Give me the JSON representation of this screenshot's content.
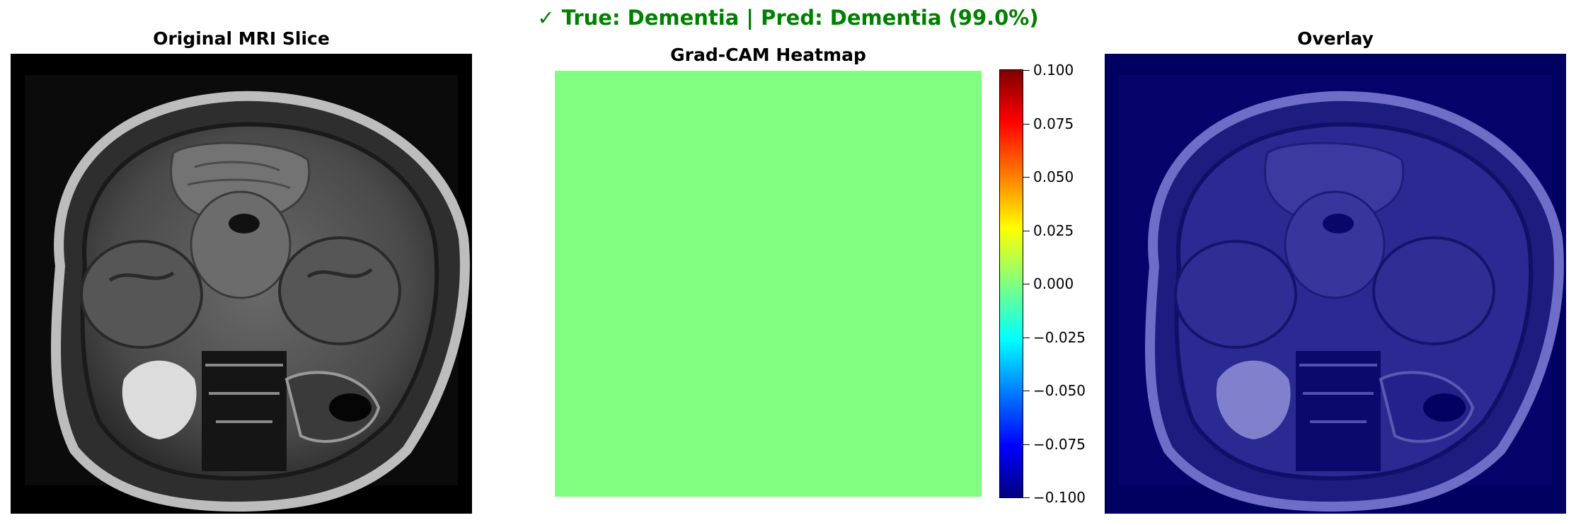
{
  "figure": {
    "suptitle": "✓ True: Dementia | Pred: Dementia (99.0%)",
    "title_color": "#008000"
  },
  "panels": {
    "original": {
      "title": "Original MRI Slice"
    },
    "heatmap": {
      "title": "Grad-CAM Heatmap",
      "fill_color": "#80ff80"
    },
    "overlay": {
      "title": "Overlay",
      "tint_color": "#000060"
    }
  },
  "colorbar": {
    "colormap": "jet",
    "range": [
      -0.1,
      0.1
    ],
    "ticks": [
      "0.100",
      "0.075",
      "0.050",
      "0.025",
      "0.000",
      "−0.025",
      "−0.050",
      "−0.075",
      "−0.100"
    ]
  }
}
